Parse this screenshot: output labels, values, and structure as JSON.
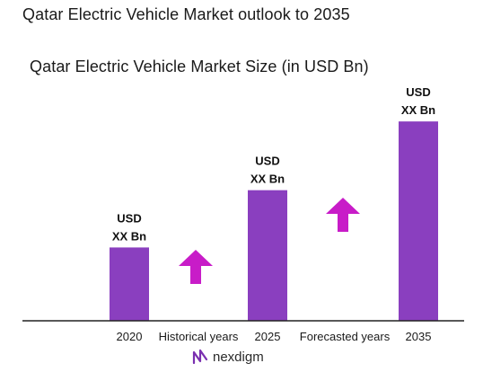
{
  "title": "Qatar Electric Vehicle Market outlook to 2035",
  "chart_data": {
    "type": "bar",
    "title": "Qatar Electric Vehicle Market Size (in USD Bn)",
    "categories": [
      "2020",
      "2025",
      "2035"
    ],
    "values": [
      32,
      57,
      87
    ],
    "ylim": [
      0,
      100
    ],
    "data_labels": [
      [
        "USD",
        "XX Bn"
      ],
      [
        "USD",
        "XX Bn"
      ],
      [
        "USD",
        "XX Bn"
      ]
    ],
    "annotations": [
      "Historical years",
      "Forecasted years"
    ],
    "bar_color": "#8a3fbf",
    "arrow_color": "#c81cc8",
    "grid": false,
    "legend": "none"
  },
  "brand": {
    "name": "nexdigm",
    "icon": "nexdigm-logo-icon",
    "color": "#6a2a9a"
  }
}
